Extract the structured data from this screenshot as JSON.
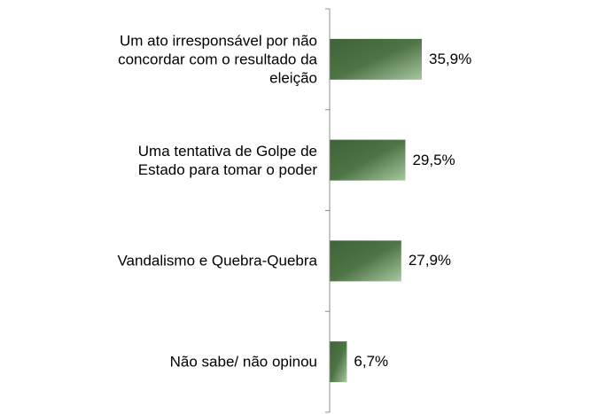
{
  "chart_data": {
    "type": "bar",
    "orientation": "horizontal",
    "categories": [
      "Um ato irresponsável por não concordar com o resultado da eleição",
      "Uma tentativa de Golpe de Estado para tomar o poder",
      "Vandalismo e Quebra-Quebra",
      "Não sabe/ não opinou"
    ],
    "category_lines": [
      "Um ato irresponsável por não\nconcordar com o resultado da\neleição",
      "Uma tentativa de Golpe de\nEstado para tomar o poder",
      "Vandalismo e Quebra-Quebra",
      "Não sabe/ não opinou"
    ],
    "values": [
      35.9,
      29.5,
      27.9,
      6.7
    ],
    "value_labels": [
      "35,9%",
      "29,5%",
      "27,9%",
      "6,7%"
    ],
    "xlim": [
      0,
      100
    ],
    "unit": "%",
    "grid": false,
    "legend": "none",
    "colors": {
      "bar_dark": "#3f6337",
      "bar_light": "#a9c7a1",
      "axis": "#8c8c8c"
    }
  }
}
